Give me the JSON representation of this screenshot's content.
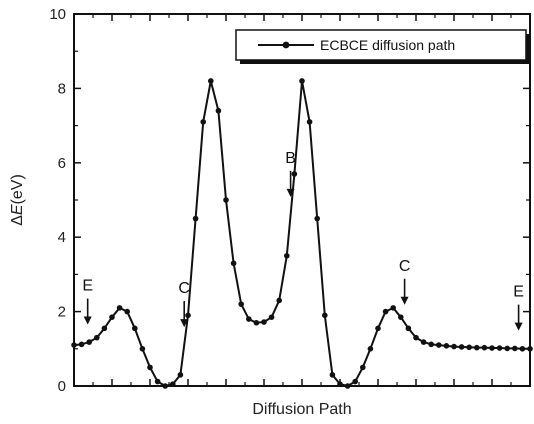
{
  "chart_data": {
    "type": "line",
    "title": "",
    "xlabel": "Diffusion Path",
    "ylabel_delta": "Δ",
    "ylabel_italic": "E",
    "ylabel_unit": "(eV)",
    "ylim": [
      0,
      10
    ],
    "yticks": [
      0,
      2,
      4,
      6,
      8,
      10
    ],
    "xlim": [
      0,
      60
    ],
    "grid": false,
    "legend_position": "top-right",
    "colors": {
      "line": "#111111",
      "marker": "#111111",
      "axis": "#111111"
    },
    "series": [
      {
        "name": "ECBCE diffusion path",
        "x": [
          0,
          1,
          2,
          3,
          4,
          5,
          6,
          7,
          8,
          9,
          10,
          11,
          12,
          13,
          14,
          15,
          16,
          17,
          18,
          19,
          20,
          21,
          22,
          23,
          24,
          25,
          26,
          27,
          28,
          29,
          30,
          31,
          32,
          33,
          34,
          35,
          36,
          37,
          38,
          39,
          40,
          41,
          42,
          43,
          44,
          45,
          46,
          47,
          48,
          49,
          50,
          51,
          52,
          53,
          54,
          55,
          56,
          57,
          58,
          59,
          60
        ],
        "y": [
          1.1,
          1.12,
          1.18,
          1.3,
          1.55,
          1.85,
          2.1,
          2.0,
          1.55,
          1.0,
          0.5,
          0.12,
          0.0,
          0.05,
          0.3,
          1.9,
          4.5,
          7.1,
          8.2,
          7.4,
          5.0,
          3.3,
          2.2,
          1.8,
          1.7,
          1.72,
          1.85,
          2.3,
          3.5,
          5.7,
          8.2,
          7.1,
          4.5,
          1.9,
          0.3,
          0.05,
          0.0,
          0.12,
          0.5,
          1.0,
          1.55,
          2.0,
          2.1,
          1.85,
          1.55,
          1.3,
          1.18,
          1.12,
          1.1,
          1.08,
          1.06,
          1.05,
          1.04,
          1.03,
          1.03,
          1.02,
          1.02,
          1.01,
          1.01,
          1.0,
          1.0
        ]
      }
    ],
    "annotations": [
      {
        "label": "E",
        "x": 1.8
      },
      {
        "label": "C",
        "x": 14.5
      },
      {
        "label": "B",
        "x": 28.5
      },
      {
        "label": "C",
        "x": 43.5
      },
      {
        "label": "E",
        "x": 58.5
      }
    ]
  }
}
